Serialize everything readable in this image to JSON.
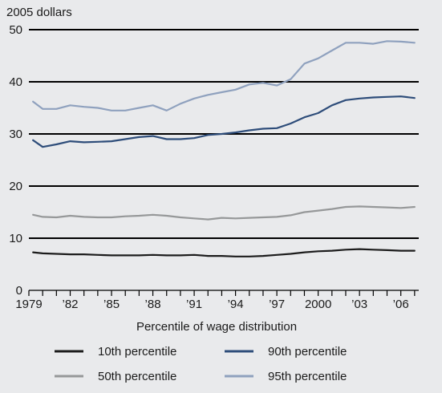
{
  "chart_data": {
    "type": "line",
    "ylabel": "2005 dollars",
    "xlabel": "Percentile of wage distribution",
    "ylim": [
      0,
      50
    ],
    "yticks": [
      0,
      10,
      20,
      30,
      40,
      50
    ],
    "xlim": [
      1979,
      2007.3
    ],
    "xticks": [
      {
        "value": 1979,
        "label": "1979"
      },
      {
        "value": 1982,
        "label": "’82"
      },
      {
        "value": 1985,
        "label": "’85"
      },
      {
        "value": 1988,
        "label": "’88"
      },
      {
        "value": 1991,
        "label": "’91"
      },
      {
        "value": 1994,
        "label": "’94"
      },
      {
        "value": 1997,
        "label": "’97"
      },
      {
        "value": 2000,
        "label": "2000"
      },
      {
        "value": 2003,
        "label": "’03"
      },
      {
        "value": 2006,
        "label": "’06"
      }
    ],
    "grid": "horizontal",
    "legend_position": "bottom",
    "x": [
      1979.3,
      1980.0,
      1981.0,
      1982.0,
      1983.0,
      1984.0,
      1985.0,
      1986.0,
      1987.0,
      1988.0,
      1989.0,
      1990.0,
      1991.0,
      1992.0,
      1993.0,
      1994.0,
      1995.0,
      1996.0,
      1997.0,
      1998.0,
      1999.0,
      2000.0,
      2001.0,
      2002.0,
      2003.0,
      2004.0,
      2005.0,
      2006.0,
      2007.0
    ],
    "series": [
      {
        "name": "10th percentile",
        "color": "#1c1c1c",
        "values": [
          7.3,
          7.1,
          7.0,
          6.9,
          6.9,
          6.8,
          6.7,
          6.7,
          6.7,
          6.8,
          6.7,
          6.7,
          6.8,
          6.6,
          6.6,
          6.5,
          6.5,
          6.6,
          6.8,
          7.0,
          7.3,
          7.5,
          7.6,
          7.8,
          7.9,
          7.8,
          7.7,
          7.6,
          7.6
        ]
      },
      {
        "name": "50th percentile",
        "color": "#969899",
        "values": [
          14.5,
          14.1,
          14.0,
          14.3,
          14.1,
          14.0,
          14.0,
          14.2,
          14.3,
          14.5,
          14.3,
          14.0,
          13.8,
          13.6,
          13.9,
          13.8,
          13.9,
          14.0,
          14.1,
          14.4,
          15.0,
          15.3,
          15.6,
          16.0,
          16.1,
          16.0,
          15.9,
          15.8,
          16.0
        ]
      },
      {
        "name": "90th percentile",
        "color": "#2e4d7a",
        "values": [
          28.8,
          27.5,
          28.0,
          28.6,
          28.4,
          28.5,
          28.6,
          29.0,
          29.4,
          29.6,
          29.0,
          29.0,
          29.2,
          29.8,
          30.0,
          30.3,
          30.7,
          31.0,
          31.1,
          32.0,
          33.2,
          34.0,
          35.5,
          36.5,
          36.8,
          37.0,
          37.1,
          37.2,
          36.9
        ]
      },
      {
        "name": "95th percentile",
        "color": "#8fa1be",
        "values": [
          36.2,
          34.8,
          34.8,
          35.5,
          35.2,
          35.0,
          34.5,
          34.5,
          35.0,
          35.5,
          34.5,
          35.8,
          36.8,
          37.5,
          38.0,
          38.5,
          39.5,
          39.8,
          39.3,
          40.5,
          43.5,
          44.5,
          46.0,
          47.5,
          47.5,
          47.3,
          47.8,
          47.7,
          47.5
        ]
      }
    ]
  }
}
